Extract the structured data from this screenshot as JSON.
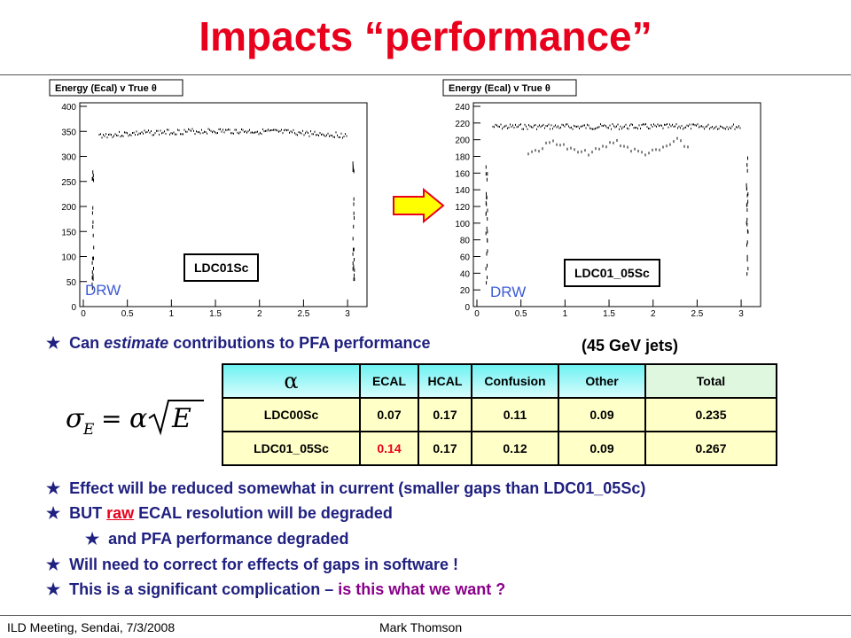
{
  "title": "Impacts “performance”",
  "plots": [
    {
      "id": "left",
      "plot_title": "Energy (Ecal) v True θ",
      "label": "LDC01Sc",
      "watermark": "DRW",
      "yticks": [
        "400",
        "350",
        "300",
        "250",
        "200",
        "150",
        "100",
        "50",
        "0"
      ],
      "xticks": [
        "0",
        "0.5",
        "1",
        "1.5",
        "2",
        "2.5",
        "3"
      ]
    },
    {
      "id": "right",
      "plot_title": "Energy (Ecal) v True θ",
      "label": "LDC01_05Sc",
      "watermark": "DRW",
      "yticks": [
        "240",
        "220",
        "200",
        "180",
        "160",
        "140",
        "120",
        "100",
        "80",
        "60",
        "40",
        "20",
        "0"
      ],
      "xticks": [
        "0",
        "0.5",
        "1",
        "1.5",
        "2",
        "2.5",
        "3"
      ]
    }
  ],
  "bullet1": {
    "pre": "Can ",
    "em": "estimate",
    "post": " contributions to PFA performance"
  },
  "jets_note": "(45 GeV jets)",
  "formula": "σ_E = α√E",
  "table": {
    "header": [
      "α",
      "ECAL",
      "HCAL",
      "Confusion",
      "Other",
      "Total"
    ],
    "rows": [
      [
        "LDC00Sc",
        "0.07",
        "0.17",
        "0.11",
        "0.09",
        "0.235"
      ],
      [
        "LDC01_05Sc",
        "0.14",
        "0.17",
        "0.12",
        "0.09",
        "0.267"
      ]
    ]
  },
  "bullets": {
    "b2": "Effect will be reduced somewhat in current (smaller gaps than LDC01_05Sc)",
    "b3_pre": "BUT ",
    "b3_red": "raw",
    "b3_post": " ECAL resolution will be degraded",
    "b4": "and PFA performance degraded",
    "b5": "Will need to correct for effects of gaps in software !",
    "b6_pre": "This is a significant complication – ",
    "b6_purple": "is this what we want ?"
  },
  "footer": {
    "left": "ILD Meeting, Sendai, 7/3/2008",
    "center": "Mark Thomson"
  },
  "colors": {
    "title": "#e8001c",
    "bullet": "#202080",
    "highlight": "#e8001c",
    "question": "#8a008a",
    "arrow": "#ffff00"
  }
}
